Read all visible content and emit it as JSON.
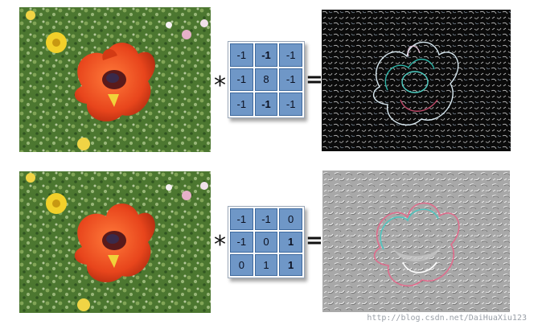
{
  "rows": [
    {
      "operator": "*",
      "equals": "=",
      "kernel": [
        [
          "-1",
          "-1",
          "-1"
        ],
        [
          "-1",
          "8",
          "-1"
        ],
        [
          "-1",
          "-1",
          "-1"
        ]
      ],
      "bold_cells": [
        "0.1",
        "1.1",
        "2.1"
      ],
      "output_icon": "edge-detected-flower-image"
    },
    {
      "operator": "*",
      "equals": "=",
      "kernel": [
        [
          "-1",
          "-1",
          "0"
        ],
        [
          "-1",
          "0",
          "1"
        ],
        [
          "0",
          "1",
          "1"
        ]
      ],
      "bold_cells": [
        "1.2",
        "2.2"
      ],
      "output_icon": "embossed-flower-image"
    }
  ],
  "input_icon": "red-poppy-flower-photo",
  "watermark": "http://blog.csdn.net/DaiHuaXiu123",
  "colors": {
    "kernel_cell": "#6f97c7",
    "kernel_border": "#3f6a9e"
  }
}
